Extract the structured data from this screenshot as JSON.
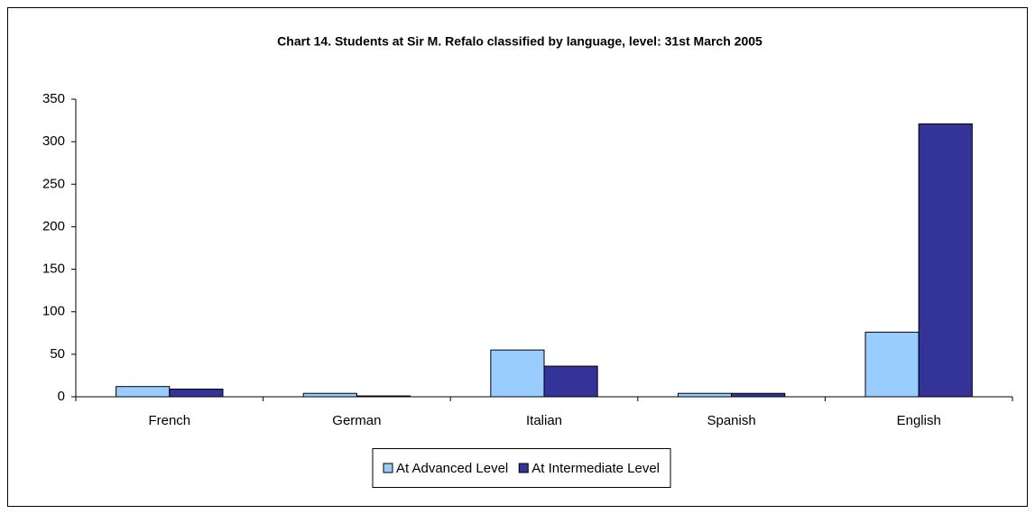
{
  "chart_data": {
    "type": "bar",
    "title": "Chart 14. Students at Sir M. Refalo classified by language, level: 31st March 2005",
    "categories": [
      "French",
      "German",
      "Italian",
      "Spanish",
      "English"
    ],
    "series": [
      {
        "name": "At Advanced Level",
        "color": "#99ccff",
        "values": [
          12,
          4,
          55,
          4,
          76
        ]
      },
      {
        "name": "At Intermediate Level",
        "color": "#333399",
        "values": [
          9,
          1,
          36,
          4,
          321
        ]
      }
    ],
    "ylim": [
      0,
      350
    ],
    "yticks": [
      0,
      50,
      100,
      150,
      200,
      250,
      300,
      350
    ],
    "grid": false,
    "legend": "bottom"
  }
}
